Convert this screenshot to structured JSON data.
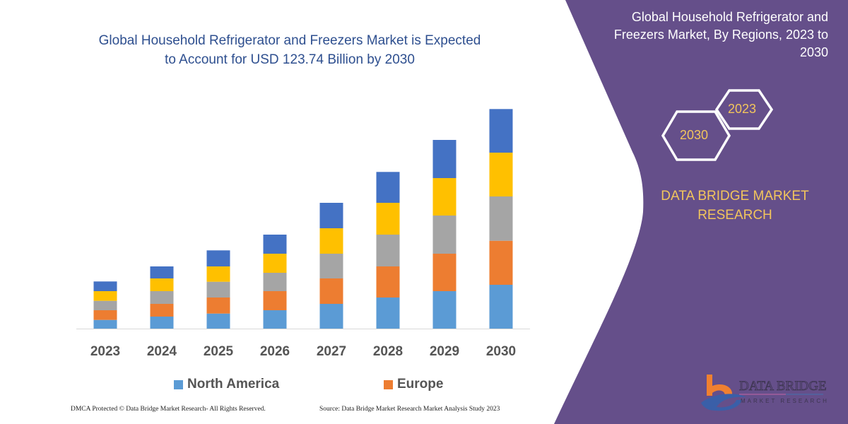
{
  "header": {
    "title_line1": "Global Household Refrigerator and Freezers Market is Expected",
    "title_line2": "to Account for USD 123.74 Billion by 2030"
  },
  "side_panel": {
    "title_line1": "Global Household Refrigerator and",
    "title_line2": "Freezers Market, By Regions, 2023 to",
    "title_line3": "2030",
    "hex_start": "2023",
    "hex_end": "2030",
    "brand_line1": "DATA BRIDGE MARKET",
    "brand_line2": "RESEARCH",
    "logo_text": "DATA BRIDGE",
    "logo_subtext": "MARKET RESEARCH",
    "panel_color": "#654f8a",
    "accent_color": "#f2c55c"
  },
  "footer": {
    "left": "DMCA Protected © Data Bridge Market Research-  All Rights Reserved.",
    "right": "Source: Data Bridge Market Research  Market Analysis Study 2023"
  },
  "chart_data": {
    "type": "bar",
    "stacked": true,
    "categories": [
      "2023",
      "2024",
      "2025",
      "2026",
      "2027",
      "2028",
      "2029",
      "2030"
    ],
    "series": [
      {
        "name": "North America",
        "color": "#5b9bd5",
        "values": [
          12.3,
          17,
          21.3,
          26,
          35,
          44,
          53,
          62
        ]
      },
      {
        "name": "Europe",
        "color": "#ed7d31",
        "values": [
          13.7,
          18,
          22.7,
          27,
          36,
          44,
          53,
          62.3
        ]
      },
      {
        "color": "#a5a5a5",
        "values": [
          13.3,
          18,
          22.3,
          26,
          35,
          45,
          54,
          62.7
        ]
      },
      {
        "color": "#ffc000",
        "values": [
          13.7,
          18,
          21.7,
          27,
          36,
          45,
          53,
          62
        ]
      },
      {
        "color": "#4472c4",
        "values": [
          13.7,
          17,
          22.7,
          27,
          36,
          43.7,
          54,
          61.7
        ]
      }
    ],
    "title": "",
    "xlabel": "",
    "ylabel": "",
    "y_axis_visible": false,
    "grid": false,
    "legend_placement": "bottom"
  }
}
